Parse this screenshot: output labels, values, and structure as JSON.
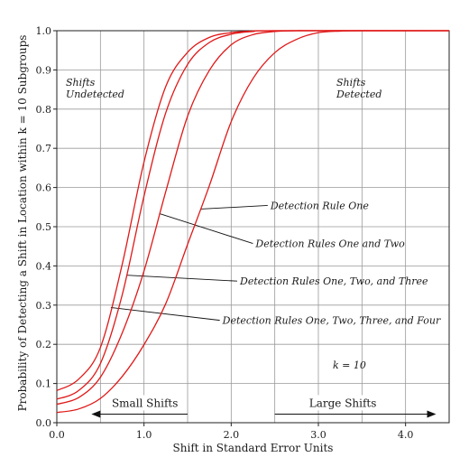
{
  "chart_data": {
    "type": "line",
    "xlabel": "Shift in Standard Error Units",
    "ylabel": "Probability of Detecting a Shift in Location within k = 10 Subgroups",
    "xlim": [
      0,
      4.5
    ],
    "ylim": [
      0,
      1
    ],
    "x_ticks": [
      "0.0",
      "1.0",
      "2.0",
      "3.0",
      "4.0"
    ],
    "y_ticks": [
      "0.0",
      "0.1",
      "0.2",
      "0.3",
      "0.4",
      "0.5",
      "0.6",
      "0.7",
      "0.8",
      "0.9",
      "1.0"
    ],
    "grid": true,
    "series_color": "#e01818",
    "series": [
      {
        "name": "Detection Rule One",
        "x": [
          0.0,
          0.25,
          0.5,
          0.75,
          1.0,
          1.25,
          1.5,
          1.75,
          2.0,
          2.25,
          2.5,
          2.75,
          3.0,
          3.25,
          3.5,
          4.5
        ],
        "y": [
          0.026,
          0.035,
          0.062,
          0.118,
          0.199,
          0.304,
          0.455,
          0.605,
          0.768,
          0.878,
          0.944,
          0.978,
          0.995,
          0.999,
          1.0,
          1.0
        ]
      },
      {
        "name": "Detection Rules One and Two",
        "x": [
          0.0,
          0.25,
          0.5,
          0.75,
          1.0,
          1.25,
          1.5,
          1.75,
          2.0,
          2.25,
          2.5,
          2.75,
          3.0,
          4.5
        ],
        "y": [
          0.047,
          0.064,
          0.116,
          0.229,
          0.387,
          0.59,
          0.782,
          0.899,
          0.964,
          0.99,
          0.998,
          1.0,
          1.0,
          1.0
        ]
      },
      {
        "name": "Detection Rules One, Two, and Three",
        "x": [
          0.0,
          0.25,
          0.5,
          0.75,
          1.0,
          1.25,
          1.5,
          1.75,
          2.0,
          2.25,
          2.5,
          4.5
        ],
        "y": [
          0.06,
          0.082,
          0.151,
          0.326,
          0.578,
          0.791,
          0.914,
          0.97,
          0.991,
          0.998,
          1.0,
          1.0
        ]
      },
      {
        "name": "Detection Rules One, Two, Three, and Four",
        "x": [
          0.0,
          0.25,
          0.5,
          0.75,
          1.0,
          1.25,
          1.5,
          1.75,
          2.0,
          2.25,
          2.5,
          4.5
        ],
        "y": [
          0.082,
          0.111,
          0.192,
          0.404,
          0.665,
          0.858,
          0.945,
          0.983,
          0.995,
          0.999,
          1.0,
          1.0
        ]
      }
    ],
    "callouts": [
      {
        "label": "Detection Rule One",
        "series": 0,
        "at_x": 1.65,
        "label_x": 2.45,
        "label_y": 0.545
      },
      {
        "label": "Detection Rules One and Two",
        "series": 1,
        "at_x": 1.18,
        "label_x": 2.28,
        "label_y": 0.448
      },
      {
        "label": "Detection Rules One, Two, and Three",
        "series": 2,
        "at_x": 0.8,
        "label_x": 2.1,
        "label_y": 0.352
      },
      {
        "label": "Detection Rules One, Two, Three, and Four",
        "series": 3,
        "at_x": 0.62,
        "label_x": 1.9,
        "label_y": 0.252
      }
    ],
    "annotations": {
      "undetected": [
        "Shifts",
        "Undetected"
      ],
      "detected": [
        "Shifts",
        "Detected"
      ],
      "k_label": "k = 10",
      "small_shifts": "Small Shifts",
      "large_shifts": "Large Shifts"
    },
    "region_boundaries": [
      1.5,
      2.5
    ],
    "small_arrow_range": [
      0.5,
      1.5
    ],
    "large_arrow_range": [
      2.5,
      4.35
    ],
    "arrow_y": 0.022
  }
}
